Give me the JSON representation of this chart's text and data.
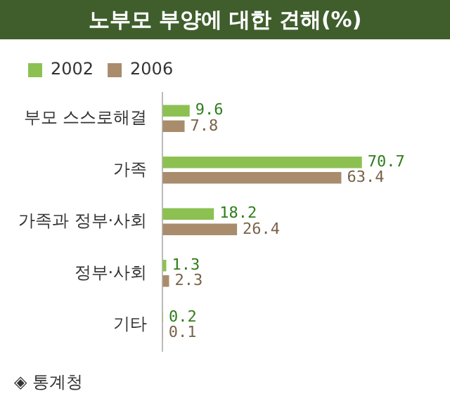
{
  "chart_data": {
    "type": "bar",
    "orientation": "horizontal",
    "title": "노부모 부양에 대한 견해(%)",
    "categories": [
      "부모 스스로해결",
      "가족",
      "가족과 정부·사회",
      "정부·사회",
      "기타"
    ],
    "series": [
      {
        "name": "2002",
        "color": "#8cc152",
        "values": [
          9.6,
          70.7,
          18.2,
          1.3,
          0.2
        ]
      },
      {
        "name": "2006",
        "color": "#a88c6c",
        "values": [
          7.8,
          63.4,
          26.4,
          2.3,
          0.1
        ]
      }
    ],
    "data_labels": true,
    "legend": "top left",
    "grid": false,
    "tick_labels": "y",
    "annotations": [
      "◈ 통계청"
    ]
  }
}
